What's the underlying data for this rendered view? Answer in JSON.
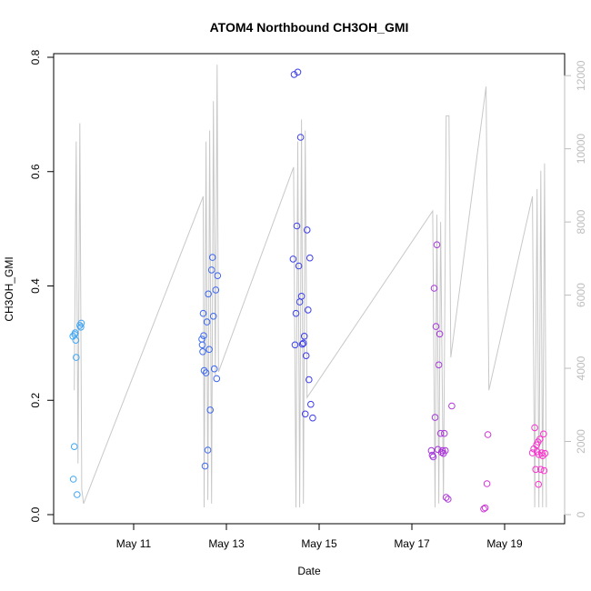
{
  "chart_data": {
    "type": "scatter",
    "title": "ATOM4 Northbound CH3OH_GMI",
    "xlabel": "Date",
    "ylabel": "CH3OH_GMI",
    "ylim": [
      0,
      0.8
    ],
    "xlim_days": [
      9.6,
      19.9
    ],
    "x_ticks": [
      {
        "day": 11,
        "label": "May 11"
      },
      {
        "day": 13,
        "label": "May 13"
      },
      {
        "day": 15,
        "label": "May 15"
      },
      {
        "day": 17,
        "label": "May 17"
      },
      {
        "day": 19,
        "label": "May 19"
      }
    ],
    "y_ticks": [
      0.0,
      0.2,
      0.4,
      0.6,
      0.8
    ],
    "y_tick_labels": [
      "0.0",
      "0.2",
      "0.4",
      "0.6",
      "0.8"
    ],
    "y2lim": [
      0,
      12700
    ],
    "y2_ticks": [
      0,
      2000,
      4000,
      6000,
      8000,
      10000,
      12000
    ],
    "y2_tick_labels": [
      "0",
      "2000",
      "4000",
      "6000",
      "8000",
      "10000",
      "12000"
    ],
    "colors": {
      "alt_line": "#c8c8c8",
      "right_axis": "#bdbdbd",
      "gradient_start": "#3fa9f5",
      "gradient_end": "#ff33cc"
    },
    "altitude": [
      [
        9.72,
        3400
      ],
      [
        9.76,
        10200
      ],
      [
        9.8,
        1400
      ],
      [
        9.84,
        10700
      ],
      [
        9.88,
        700
      ],
      [
        9.92,
        300
      ],
      [
        12.5,
        8700
      ],
      [
        12.52,
        200
      ],
      [
        12.56,
        10200
      ],
      [
        12.6,
        400
      ],
      [
        12.64,
        10500
      ],
      [
        12.68,
        300
      ],
      [
        12.72,
        11300
      ],
      [
        12.76,
        3800
      ],
      [
        12.8,
        12300
      ],
      [
        12.83,
        3900
      ],
      [
        14.45,
        9500
      ],
      [
        14.5,
        200
      ],
      [
        14.54,
        10200
      ],
      [
        14.58,
        200
      ],
      [
        14.62,
        10800
      ],
      [
        14.66,
        300
      ],
      [
        14.7,
        10500
      ],
      [
        14.74,
        3200
      ],
      [
        17.45,
        8300
      ],
      [
        17.5,
        200
      ],
      [
        17.54,
        8200
      ],
      [
        17.58,
        300
      ],
      [
        17.62,
        8000
      ],
      [
        17.68,
        400
      ],
      [
        17.74,
        10900
      ],
      [
        17.8,
        10900
      ],
      [
        17.84,
        4300
      ],
      [
        18.6,
        11700
      ],
      [
        18.66,
        3400
      ],
      [
        19.6,
        8700
      ],
      [
        19.65,
        200
      ],
      [
        19.7,
        8900
      ],
      [
        19.74,
        200
      ],
      [
        19.78,
        9400
      ],
      [
        19.82,
        200
      ],
      [
        19.86,
        9600
      ],
      [
        19.9,
        200
      ]
    ],
    "points": [
      [
        9.69,
        0.312
      ],
      [
        9.7,
        0.062
      ],
      [
        9.72,
        0.119
      ],
      [
        9.73,
        0.315
      ],
      [
        9.74,
        0.318
      ],
      [
        9.75,
        0.305
      ],
      [
        9.76,
        0.275
      ],
      [
        9.78,
        0.035
      ],
      [
        9.84,
        0.331
      ],
      [
        9.86,
        0.328
      ],
      [
        9.87,
        0.335
      ],
      [
        12.47,
        0.307
      ],
      [
        12.48,
        0.297
      ],
      [
        12.49,
        0.285
      ],
      [
        12.5,
        0.352
      ],
      [
        12.51,
        0.313
      ],
      [
        12.52,
        0.252
      ],
      [
        12.54,
        0.085
      ],
      [
        12.56,
        0.248
      ],
      [
        12.58,
        0.337
      ],
      [
        12.6,
        0.113
      ],
      [
        12.61,
        0.386
      ],
      [
        12.63,
        0.289
      ],
      [
        12.65,
        0.183
      ],
      [
        12.68,
        0.428
      ],
      [
        12.7,
        0.45
      ],
      [
        12.72,
        0.347
      ],
      [
        12.74,
        0.255
      ],
      [
        12.77,
        0.393
      ],
      [
        12.79,
        0.238
      ],
      [
        12.81,
        0.418
      ],
      [
        14.44,
        0.447
      ],
      [
        14.46,
        0.77
      ],
      [
        14.48,
        0.297
      ],
      [
        14.5,
        0.352
      ],
      [
        14.52,
        0.505
      ],
      [
        14.54,
        0.774
      ],
      [
        14.56,
        0.435
      ],
      [
        14.58,
        0.372
      ],
      [
        14.6,
        0.66
      ],
      [
        14.62,
        0.382
      ],
      [
        14.64,
        0.298
      ],
      [
        14.66,
        0.3
      ],
      [
        14.68,
        0.312
      ],
      [
        14.7,
        0.176
      ],
      [
        14.72,
        0.278
      ],
      [
        14.74,
        0.498
      ],
      [
        14.76,
        0.358
      ],
      [
        14.78,
        0.236
      ],
      [
        14.8,
        0.449
      ],
      [
        14.82,
        0.193
      ],
      [
        14.86,
        0.169
      ],
      [
        17.42,
        0.112
      ],
      [
        17.44,
        0.104
      ],
      [
        17.46,
        0.101
      ],
      [
        17.48,
        0.396
      ],
      [
        17.5,
        0.17
      ],
      [
        17.52,
        0.329
      ],
      [
        17.54,
        0.472
      ],
      [
        17.56,
        0.114
      ],
      [
        17.58,
        0.262
      ],
      [
        17.6,
        0.316
      ],
      [
        17.62,
        0.142
      ],
      [
        17.64,
        0.109
      ],
      [
        17.66,
        0.112
      ],
      [
        17.68,
        0.107
      ],
      [
        17.7,
        0.142
      ],
      [
        17.72,
        0.112
      ],
      [
        17.74,
        0.03
      ],
      [
        17.78,
        0.027
      ],
      [
        17.86,
        0.19
      ],
      [
        18.55,
        0.01
      ],
      [
        18.58,
        0.012
      ],
      [
        18.62,
        0.054
      ],
      [
        18.64,
        0.14
      ],
      [
        19.6,
        0.108
      ],
      [
        19.63,
        0.115
      ],
      [
        19.65,
        0.152
      ],
      [
        19.67,
        0.079
      ],
      [
        19.69,
        0.122
      ],
      [
        19.7,
        0.11
      ],
      [
        19.72,
        0.127
      ],
      [
        19.73,
        0.053
      ],
      [
        19.74,
        0.105
      ],
      [
        19.76,
        0.132
      ],
      [
        19.78,
        0.079
      ],
      [
        19.8,
        0.108
      ],
      [
        19.82,
        0.103
      ],
      [
        19.84,
        0.141
      ],
      [
        19.85,
        0.077
      ],
      [
        19.87,
        0.107
      ]
    ]
  }
}
